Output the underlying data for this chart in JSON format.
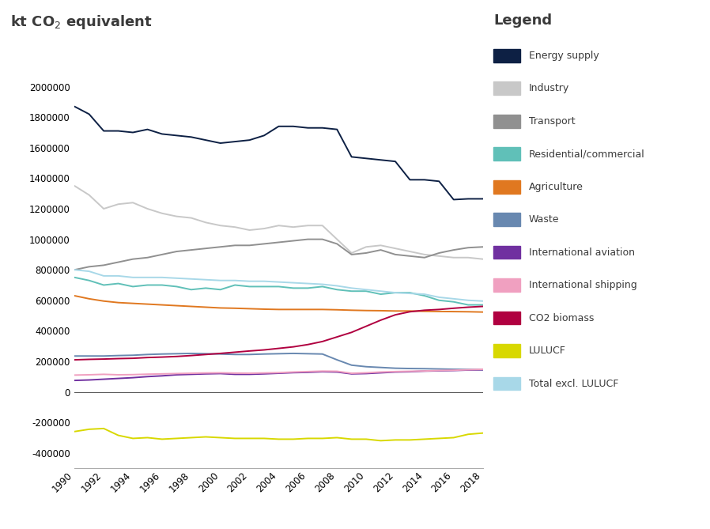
{
  "years": [
    1990,
    1991,
    1992,
    1993,
    1994,
    1995,
    1996,
    1997,
    1998,
    1999,
    2000,
    2001,
    2002,
    2003,
    2004,
    2005,
    2006,
    2007,
    2008,
    2009,
    2010,
    2011,
    2012,
    2013,
    2014,
    2015,
    2016,
    2017,
    2018
  ],
  "series": {
    "Energy supply": [
      1870000,
      1820000,
      1710000,
      1710000,
      1700000,
      1720000,
      1690000,
      1680000,
      1670000,
      1650000,
      1630000,
      1640000,
      1650000,
      1680000,
      1740000,
      1740000,
      1730000,
      1730000,
      1720000,
      1540000,
      1530000,
      1520000,
      1510000,
      1390000,
      1390000,
      1380000,
      1260000,
      1265000,
      1265000
    ],
    "Industry": [
      1350000,
      1290000,
      1200000,
      1230000,
      1240000,
      1200000,
      1170000,
      1150000,
      1140000,
      1110000,
      1090000,
      1080000,
      1060000,
      1070000,
      1090000,
      1080000,
      1090000,
      1090000,
      1000000,
      910000,
      950000,
      960000,
      940000,
      920000,
      900000,
      890000,
      880000,
      880000,
      870000
    ],
    "Transport": [
      800000,
      820000,
      830000,
      850000,
      870000,
      880000,
      900000,
      920000,
      930000,
      940000,
      950000,
      960000,
      960000,
      970000,
      980000,
      990000,
      1000000,
      1000000,
      970000,
      900000,
      910000,
      930000,
      900000,
      890000,
      880000,
      910000,
      930000,
      945000,
      950000
    ],
    "Residential/commercial": [
      750000,
      730000,
      700000,
      710000,
      690000,
      700000,
      700000,
      690000,
      670000,
      680000,
      670000,
      700000,
      690000,
      690000,
      690000,
      680000,
      680000,
      690000,
      670000,
      660000,
      660000,
      640000,
      650000,
      650000,
      630000,
      600000,
      590000,
      570000,
      570000
    ],
    "Agriculture": [
      630000,
      610000,
      595000,
      585000,
      580000,
      575000,
      570000,
      565000,
      560000,
      555000,
      550000,
      548000,
      545000,
      542000,
      540000,
      540000,
      540000,
      540000,
      538000,
      535000,
      533000,
      532000,
      530000,
      530000,
      528000,
      527000,
      526000,
      525000,
      523000
    ],
    "Waste": [
      235000,
      235000,
      235000,
      238000,
      240000,
      245000,
      248000,
      250000,
      252000,
      250000,
      248000,
      245000,
      245000,
      248000,
      250000,
      252000,
      250000,
      248000,
      210000,
      175000,
      165000,
      160000,
      155000,
      153000,
      152000,
      150000,
      148000,
      147000,
      145000
    ],
    "International aviation": [
      75000,
      78000,
      83000,
      88000,
      93000,
      100000,
      105000,
      112000,
      115000,
      118000,
      120000,
      115000,
      115000,
      118000,
      122000,
      126000,
      128000,
      132000,
      130000,
      118000,
      120000,
      125000,
      130000,
      132000,
      136000,
      138000,
      140000,
      143000,
      145000
    ],
    "International shipping": [
      110000,
      112000,
      115000,
      112000,
      113000,
      116000,
      118000,
      120000,
      122000,
      124000,
      125000,
      123000,
      122000,
      124000,
      126000,
      130000,
      133000,
      136000,
      135000,
      122000,
      125000,
      130000,
      133000,
      135000,
      137000,
      140000,
      142000,
      145000,
      148000
    ],
    "CO2 biomass": [
      210000,
      213000,
      215000,
      218000,
      220000,
      225000,
      228000,
      232000,
      238000,
      245000,
      252000,
      260000,
      268000,
      275000,
      285000,
      295000,
      310000,
      330000,
      360000,
      390000,
      430000,
      470000,
      505000,
      525000,
      535000,
      540000,
      548000,
      555000,
      560000
    ],
    "LULUCF": [
      -260000,
      -245000,
      -240000,
      -285000,
      -305000,
      -300000,
      -310000,
      -305000,
      -300000,
      -295000,
      -300000,
      -305000,
      -305000,
      -305000,
      -310000,
      -310000,
      -305000,
      -305000,
      -300000,
      -310000,
      -310000,
      -320000,
      -315000,
      -315000,
      -310000,
      -305000,
      -300000,
      -278000,
      -270000
    ],
    "Total excl. LULUCF": [
      800000,
      790000,
      760000,
      760000,
      750000,
      750000,
      750000,
      745000,
      740000,
      735000,
      730000,
      730000,
      725000,
      725000,
      720000,
      715000,
      710000,
      705000,
      695000,
      680000,
      670000,
      660000,
      650000,
      645000,
      640000,
      620000,
      610000,
      600000,
      595000
    ]
  },
  "colors": {
    "Energy supply": "#0d2044",
    "Industry": "#c8c8c8",
    "Transport": "#909090",
    "Residential/commercial": "#60c0b8",
    "Agriculture": "#e07820",
    "Waste": "#6888b0",
    "International aviation": "#7030a0",
    "International shipping": "#f0a0c0",
    "CO2 biomass": "#b00040",
    "LULUCF": "#d8d800",
    "Total excl. LULUCF": "#a8d8e8"
  },
  "plot_order": [
    "Energy supply",
    "Industry",
    "Transport",
    "Residential/commercial",
    "Agriculture",
    "Waste",
    "International aviation",
    "International shipping",
    "CO2 biomass",
    "Total excl. LULUCF",
    "LULUCF"
  ],
  "legend_order": [
    "Energy supply",
    "Industry",
    "Transport",
    "Residential/commercial",
    "Agriculture",
    "Waste",
    "International aviation",
    "International shipping",
    "CO2 biomass",
    "LULUCF",
    "Total excl. LULUCF"
  ],
  "title": "kt CO₂ equivalent",
  "legend_title": "Legend",
  "ylim": [
    -500000,
    2100000
  ],
  "yticks": [
    -400000,
    -200000,
    0,
    200000,
    400000,
    600000,
    800000,
    1000000,
    1200000,
    1400000,
    1600000,
    1800000,
    2000000
  ],
  "xticks": [
    1990,
    1992,
    1994,
    1996,
    1998,
    2000,
    2002,
    2004,
    2006,
    2008,
    2010,
    2012,
    2014,
    2016,
    2018
  ],
  "background_color": "#ffffff",
  "text_color": "#3a3a3a"
}
